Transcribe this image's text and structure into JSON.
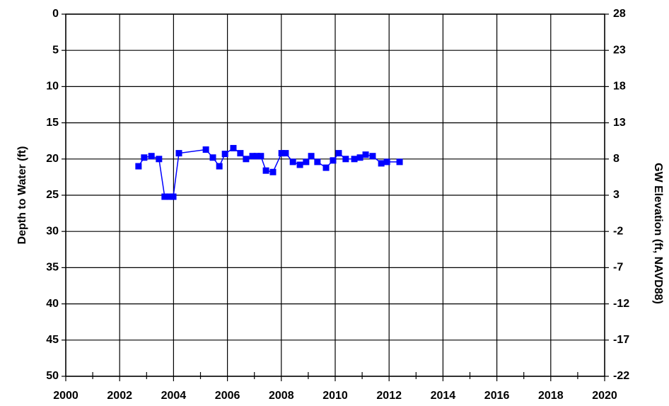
{
  "chart_data": {
    "type": "line",
    "ylabel": "Depth to Water (ft)",
    "y2label": "GW Elevation (ft, NAVD88)",
    "x": [
      2002.7,
      2002.91,
      2003.18,
      2003.46,
      2003.67,
      2003.86,
      2003.99,
      2004.2,
      2005.2,
      2005.46,
      2005.7,
      2005.91,
      2006.22,
      2006.48,
      2006.69,
      2006.93,
      2007.09,
      2007.24,
      2007.43,
      2007.69,
      2008.01,
      2008.16,
      2008.43,
      2008.69,
      2008.92,
      2009.11,
      2009.34,
      2009.66,
      2009.92,
      2010.13,
      2010.39,
      2010.71,
      2010.92,
      2011.13,
      2011.39,
      2011.71,
      2011.92,
      2012.39
    ],
    "series": [
      {
        "color": "#0000ff",
        "values": [
          21.0,
          19.8,
          19.6,
          20.0,
          25.2,
          25.2,
          25.2,
          19.2,
          18.7,
          19.8,
          21.0,
          19.3,
          18.5,
          19.2,
          20.0,
          19.6,
          19.6,
          19.6,
          21.6,
          21.8,
          19.2,
          19.2,
          20.4,
          20.8,
          20.4,
          19.6,
          20.4,
          21.2,
          20.2,
          19.2,
          20.0,
          20.0,
          19.8,
          19.4,
          19.6,
          20.6,
          20.4,
          20.4
        ]
      }
    ],
    "xlim": [
      2000,
      2020
    ],
    "xticks": [
      2000,
      2002,
      2004,
      2006,
      2008,
      2010,
      2012,
      2014,
      2016,
      2018,
      2020
    ],
    "xminorticks": [
      2001,
      2003,
      2005,
      2007,
      2009,
      2011,
      2013,
      2015,
      2017,
      2019
    ],
    "ylim": [
      50,
      0
    ],
    "yticks": [
      0,
      5,
      10,
      15,
      20,
      25,
      30,
      35,
      40,
      45,
      50
    ],
    "y2lim": [
      -22,
      28
    ],
    "y2ticks": [
      28,
      23,
      18,
      13,
      8,
      3,
      -2,
      -7,
      -12,
      -17,
      -22
    ],
    "grid": true
  }
}
